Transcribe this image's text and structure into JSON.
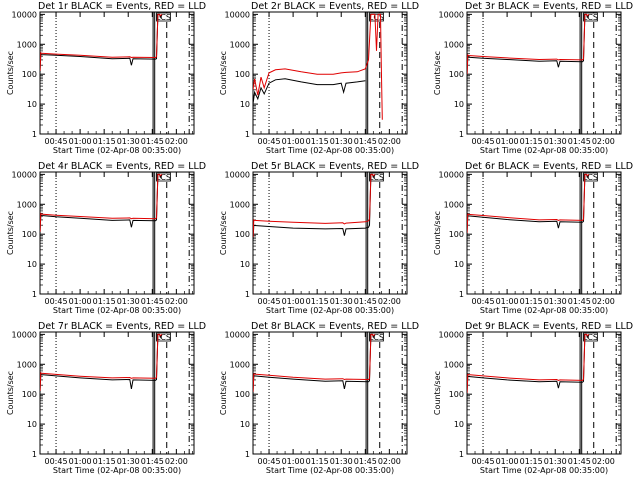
{
  "figure": {
    "rows": 3,
    "cols": 3,
    "ylabel": "Counts/sec",
    "xlabel": "Start Time (02-Apr-08 00:35:00)",
    "xticks": [
      "00:45",
      "01:00",
      "01:15",
      "01:30",
      "01:45",
      "02:00"
    ],
    "yticks": [
      "1",
      "10",
      "100",
      "1000",
      "10000"
    ],
    "marker_label": "LCS",
    "colors": {
      "events": "#000000",
      "lld": "#e00000",
      "frame": "#000000",
      "background": "#ffffff"
    }
  },
  "chart_data": [
    {
      "type": "line",
      "scale_y": "log",
      "ylim": [
        1,
        12000
      ],
      "xunit": "minutes after 00:35",
      "title": "Det 1r BLACK = Events, RED = LLD",
      "xlabel": "Start Time (02-Apr-08 00:35:00)",
      "ylabel": "Counts/sec",
      "series": [
        {
          "name": "Events",
          "x": [
            0,
            0.5,
            1,
            10,
            25,
            45,
            56,
            57,
            58,
            72,
            72.6,
            73.5,
            74.5,
            75,
            76
          ],
          "y": [
            110,
            460,
            450,
            430,
            390,
            330,
            340,
            200,
            330,
            320,
            330,
            10000,
            10000,
            8000,
            10000
          ]
        },
        {
          "name": "LLD",
          "x": [
            0,
            0.5,
            1,
            10,
            25,
            45,
            56,
            57,
            58,
            72,
            72.6,
            73.5,
            74.5,
            75,
            76
          ],
          "y": [
            130,
            520,
            500,
            470,
            430,
            370,
            380,
            360,
            370,
            360,
            380,
            10000,
            10000,
            9000,
            10000
          ]
        }
      ],
      "vlines": [
        {
          "x": 10,
          "style": "dotted"
        },
        {
          "x": 70.5,
          "style": "solid"
        },
        {
          "x": 71.5,
          "style": "solid"
        },
        {
          "x": 79,
          "style": "dashed"
        },
        {
          "x": 93,
          "style": "dashdot"
        }
      ]
    },
    {
      "type": "line",
      "scale_y": "log",
      "ylim": [
        1,
        12000
      ],
      "xunit": "minutes after 00:35",
      "title": "Det 2r BLACK = Events, RED = LLD",
      "xlabel": "Start Time (02-Apr-08 00:35:00)",
      "ylabel": "Counts/sec",
      "series": [
        {
          "name": "Events",
          "x": [
            0,
            1,
            3,
            5,
            7,
            10,
            14,
            20,
            30,
            40,
            50,
            55,
            56.5,
            58,
            65,
            70
          ],
          "y": [
            10,
            25,
            15,
            35,
            22,
            50,
            65,
            70,
            55,
            45,
            45,
            50,
            25,
            50,
            55,
            60
          ]
        },
        {
          "name": "LLD",
          "x": [
            0,
            1,
            3,
            5,
            7,
            10,
            14,
            20,
            30,
            40,
            50,
            55,
            58,
            65,
            70,
            72,
            73.5,
            75,
            76,
            77,
            78,
            79.5,
            80,
            80.6
          ],
          "y": [
            30,
            70,
            20,
            80,
            35,
            110,
            140,
            150,
            120,
            100,
            100,
            110,
            115,
            120,
            150,
            300,
            10000,
            10000,
            10000,
            600,
            10000,
            10000,
            200,
            3
          ]
        }
      ],
      "vlines": [
        {
          "x": 10,
          "style": "dotted"
        },
        {
          "x": 70.5,
          "style": "solid"
        },
        {
          "x": 71.5,
          "style": "solid"
        },
        {
          "x": 79,
          "style": "dashed"
        },
        {
          "x": 93,
          "style": "dashdot"
        }
      ]
    },
    {
      "type": "line",
      "scale_y": "log",
      "ylim": [
        1,
        12000
      ],
      "xunit": "minutes after 00:35",
      "title": "Det 3r BLACK = Events, RED = LLD",
      "xlabel": "Start Time (02-Apr-08 00:35:00)",
      "ylabel": "Counts/sec",
      "series": [
        {
          "name": "Events",
          "x": [
            0,
            0.5,
            1,
            10,
            25,
            45,
            56,
            57,
            58,
            72,
            72.6,
            73.5,
            74.5,
            75,
            76
          ],
          "y": [
            80,
            380,
            370,
            340,
            310,
            270,
            280,
            170,
            270,
            260,
            280,
            10000,
            10000,
            8000,
            10000
          ]
        },
        {
          "name": "LLD",
          "x": [
            0,
            0.5,
            1,
            10,
            25,
            45,
            56,
            57,
            58,
            72,
            72.6,
            73.5,
            74.5,
            75,
            76
          ],
          "y": [
            100,
            440,
            420,
            390,
            350,
            310,
            320,
            300,
            310,
            300,
            320,
            10000,
            10000,
            9000,
            10000
          ]
        }
      ],
      "vlines": [
        {
          "x": 10,
          "style": "dotted"
        },
        {
          "x": 70.5,
          "style": "solid"
        },
        {
          "x": 71.5,
          "style": "solid"
        },
        {
          "x": 79,
          "style": "dashed"
        },
        {
          "x": 93,
          "style": "dashdot"
        }
      ]
    },
    {
      "type": "line",
      "scale_y": "log",
      "ylim": [
        1,
        12000
      ],
      "xunit": "minutes after 00:35",
      "title": "Det 4r BLACK = Events, RED = LLD",
      "xlabel": "Start Time (02-Apr-08 00:35:00)",
      "ylabel": "Counts/sec",
      "series": [
        {
          "name": "Events",
          "x": [
            0,
            0.5,
            1,
            10,
            25,
            45,
            56,
            57,
            58,
            72,
            72.6,
            73.5,
            74.5,
            75,
            76
          ],
          "y": [
            100,
            430,
            420,
            380,
            340,
            290,
            300,
            170,
            290,
            280,
            300,
            10000,
            10000,
            8000,
            10000
          ]
        },
        {
          "name": "LLD",
          "x": [
            0,
            0.5,
            1,
            10,
            25,
            45,
            56,
            57,
            58,
            72,
            72.6,
            73.5,
            74.5,
            75,
            76
          ],
          "y": [
            120,
            490,
            470,
            430,
            390,
            340,
            350,
            330,
            340,
            330,
            350,
            10000,
            10000,
            9000,
            10000
          ]
        }
      ],
      "vlines": [
        {
          "x": 10,
          "style": "dotted"
        },
        {
          "x": 70.5,
          "style": "solid"
        },
        {
          "x": 71.5,
          "style": "solid"
        },
        {
          "x": 79,
          "style": "dashed"
        },
        {
          "x": 93,
          "style": "dashdot"
        }
      ]
    },
    {
      "type": "line",
      "scale_y": "log",
      "ylim": [
        1,
        12000
      ],
      "xunit": "minutes after 00:35",
      "title": "Det 5r BLACK = Events, RED = LLD",
      "xlabel": "Start Time (02-Apr-08 00:35:00)",
      "ylabel": "Counts/sec",
      "series": [
        {
          "name": "Events",
          "x": [
            0,
            0.5,
            1,
            10,
            25,
            45,
            56,
            57,
            58,
            70,
            72,
            72.6,
            73.5,
            74.5,
            75,
            76
          ],
          "y": [
            60,
            200,
            195,
            180,
            160,
            150,
            155,
            90,
            150,
            160,
            170,
            200,
            10000,
            10000,
            8000,
            10000
          ]
        },
        {
          "name": "LLD",
          "x": [
            0,
            0.5,
            1,
            10,
            25,
            45,
            56,
            57,
            58,
            70,
            72,
            72.6,
            73.5,
            74.5,
            75,
            76
          ],
          "y": [
            80,
            300,
            290,
            270,
            250,
            230,
            240,
            220,
            235,
            260,
            280,
            320,
            10000,
            10000,
            9000,
            10000
          ]
        }
      ],
      "vlines": [
        {
          "x": 10,
          "style": "dotted"
        },
        {
          "x": 70.5,
          "style": "solid"
        },
        {
          "x": 71.5,
          "style": "solid"
        },
        {
          "x": 79,
          "style": "dashed"
        },
        {
          "x": 93,
          "style": "dashdot"
        }
      ]
    },
    {
      "type": "line",
      "scale_y": "log",
      "ylim": [
        1,
        12000
      ],
      "xunit": "minutes after 00:35",
      "title": "Det 6r BLACK = Events, RED = LLD",
      "xlabel": "Start Time (02-Apr-08 00:35:00)",
      "ylabel": "Counts/sec",
      "series": [
        {
          "name": "Events",
          "x": [
            0,
            0.5,
            1,
            10,
            25,
            45,
            56,
            57,
            58,
            72,
            72.6,
            73.5,
            74.5,
            75,
            76
          ],
          "y": [
            90,
            420,
            410,
            370,
            310,
            260,
            270,
            160,
            260,
            250,
            270,
            10000,
            10000,
            8000,
            10000
          ]
        },
        {
          "name": "LLD",
          "x": [
            0,
            0.5,
            1,
            10,
            25,
            45,
            56,
            57,
            58,
            72,
            72.6,
            73.5,
            74.5,
            75,
            76
          ],
          "y": [
            110,
            470,
            460,
            420,
            360,
            300,
            310,
            290,
            300,
            290,
            310,
            10000,
            10000,
            9000,
            10000
          ]
        }
      ],
      "vlines": [
        {
          "x": 10,
          "style": "dotted"
        },
        {
          "x": 70.5,
          "style": "solid"
        },
        {
          "x": 71.5,
          "style": "solid"
        },
        {
          "x": 79,
          "style": "dashed"
        },
        {
          "x": 93,
          "style": "dashdot"
        }
      ]
    },
    {
      "type": "line",
      "scale_y": "log",
      "ylim": [
        1,
        12000
      ],
      "xunit": "minutes after 00:35",
      "title": "Det 7r BLACK = Events, RED = LLD",
      "xlabel": "Start Time (02-Apr-08 00:35:00)",
      "ylabel": "Counts/sec",
      "series": [
        {
          "name": "Events",
          "x": [
            0,
            0.5,
            1,
            10,
            25,
            45,
            56,
            57,
            58,
            72,
            72.6,
            73.5,
            74.5,
            75,
            76
          ],
          "y": [
            110,
            460,
            450,
            410,
            350,
            300,
            310,
            150,
            300,
            290,
            310,
            10000,
            10000,
            8000,
            10000
          ]
        },
        {
          "name": "LLD",
          "x": [
            0,
            0.5,
            1,
            10,
            25,
            45,
            56,
            57,
            58,
            72,
            72.6,
            73.5,
            74.5,
            75,
            76
          ],
          "y": [
            130,
            520,
            500,
            460,
            400,
            350,
            360,
            340,
            350,
            340,
            360,
            10000,
            10000,
            9000,
            10000
          ]
        }
      ],
      "vlines": [
        {
          "x": 10,
          "style": "dotted"
        },
        {
          "x": 70.5,
          "style": "solid"
        },
        {
          "x": 71.5,
          "style": "solid"
        },
        {
          "x": 79,
          "style": "dashed"
        },
        {
          "x": 93,
          "style": "dashdot"
        }
      ]
    },
    {
      "type": "line",
      "scale_y": "log",
      "ylim": [
        1,
        12000
      ],
      "xunit": "minutes after 00:35",
      "title": "Det 8r BLACK = Events, RED = LLD",
      "xlabel": "Start Time (02-Apr-08 00:35:00)",
      "ylabel": "Counts/sec",
      "series": [
        {
          "name": "Events",
          "x": [
            0,
            0.5,
            1,
            10,
            25,
            45,
            56,
            57,
            58,
            72,
            72.6,
            73.5,
            74.5,
            75,
            76
          ],
          "y": [
            100,
            420,
            410,
            370,
            320,
            270,
            280,
            150,
            270,
            260,
            280,
            10000,
            10000,
            8000,
            10000
          ]
        },
        {
          "name": "LLD",
          "x": [
            0,
            0.5,
            1,
            10,
            25,
            45,
            56,
            57,
            58,
            72,
            72.6,
            73.5,
            74.5,
            75,
            76
          ],
          "y": [
            120,
            480,
            470,
            430,
            370,
            320,
            330,
            310,
            320,
            310,
            330,
            10000,
            10000,
            9000,
            10000
          ]
        }
      ],
      "vlines": [
        {
          "x": 10,
          "style": "dotted"
        },
        {
          "x": 70.5,
          "style": "solid"
        },
        {
          "x": 71.5,
          "style": "solid"
        },
        {
          "x": 79,
          "style": "dashed"
        },
        {
          "x": 93,
          "style": "dashdot"
        }
      ]
    },
    {
      "type": "line",
      "scale_y": "log",
      "ylim": [
        1,
        12000
      ],
      "xunit": "minutes after 00:35",
      "title": "Det 9r BLACK = Events, RED = LLD",
      "xlabel": "Start Time (02-Apr-08 00:35:00)",
      "ylabel": "Counts/sec",
      "series": [
        {
          "name": "Events",
          "x": [
            0,
            0.5,
            1,
            10,
            25,
            45,
            56,
            57,
            58,
            72,
            72.6,
            73.5,
            74.5,
            75,
            76
          ],
          "y": [
            90,
            400,
            390,
            350,
            300,
            260,
            270,
            160,
            260,
            250,
            270,
            10000,
            10000,
            8000,
            10000
          ]
        },
        {
          "name": "LLD",
          "x": [
            0,
            0.5,
            1,
            10,
            25,
            45,
            56,
            57,
            58,
            72,
            72.6,
            73.5,
            74.5,
            75,
            76
          ],
          "y": [
            110,
            460,
            450,
            410,
            350,
            300,
            310,
            290,
            300,
            290,
            310,
            10000,
            10000,
            9000,
            10000
          ]
        }
      ],
      "vlines": [
        {
          "x": 10,
          "style": "dotted"
        },
        {
          "x": 70.5,
          "style": "solid"
        },
        {
          "x": 71.5,
          "style": "solid"
        },
        {
          "x": 79,
          "style": "dashed"
        },
        {
          "x": 93,
          "style": "dashdot"
        }
      ]
    }
  ]
}
